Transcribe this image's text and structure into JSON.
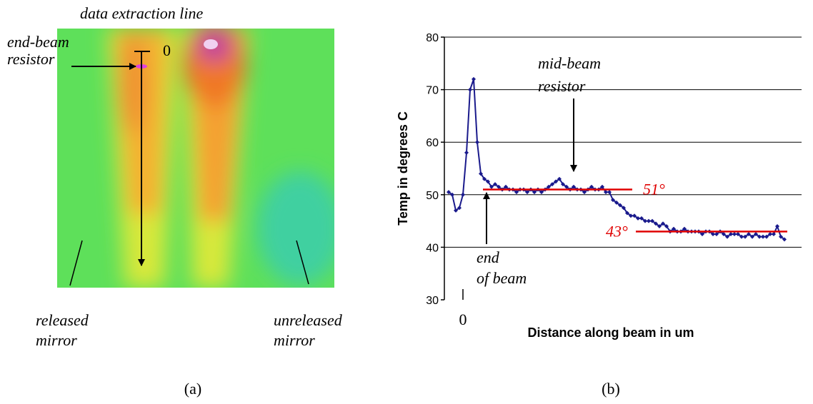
{
  "panel_a": {
    "caption": "(a)",
    "extraction_label": "data extraction line",
    "end_resistor_label": [
      "end-beam",
      "resistor"
    ],
    "zero_label": "0",
    "released_label": [
      "released",
      "mirror"
    ],
    "unreleased_label": [
      "unreleased",
      "mirror"
    ]
  },
  "chart_data": {
    "type": "line",
    "caption": "(b)",
    "x_label": "Distance along beam in um",
    "y_label": "Temp in degrees C",
    "xlim": [
      -26,
      474
    ],
    "xticks": [
      0
    ],
    "ylim": [
      30,
      80
    ],
    "yticks": [
      30,
      40,
      50,
      60,
      70,
      80
    ],
    "grid": true,
    "x": [
      -20,
      -15,
      -10,
      -5,
      0,
      5,
      10,
      15,
      20,
      25,
      30,
      35,
      40,
      45,
      50,
      55,
      60,
      65,
      70,
      75,
      80,
      85,
      90,
      95,
      100,
      105,
      110,
      115,
      120,
      125,
      130,
      135,
      140,
      145,
      150,
      155,
      160,
      165,
      170,
      175,
      180,
      185,
      190,
      195,
      200,
      205,
      210,
      215,
      220,
      225,
      230,
      235,
      240,
      245,
      250,
      255,
      260,
      265,
      270,
      275,
      280,
      285,
      290,
      295,
      300,
      305,
      310,
      315,
      320,
      325,
      330,
      335,
      340,
      345,
      350,
      355,
      360,
      365,
      370,
      375,
      380,
      385,
      390,
      395,
      400,
      405,
      410,
      415,
      420,
      425,
      430,
      435,
      440,
      445,
      450
    ],
    "series": [
      {
        "color": "#1a1a8c",
        "values": [
          50.5,
          50,
          47,
          47.5,
          50,
          58,
          70,
          72,
          60,
          54,
          53,
          52.5,
          51.5,
          52,
          51.5,
          51,
          51.5,
          51,
          51,
          50.5,
          51,
          51,
          50.5,
          51,
          50.5,
          51,
          50.5,
          51,
          51.5,
          52,
          52.5,
          53,
          52,
          51.5,
          51,
          51.5,
          51,
          51,
          50.5,
          51,
          51.5,
          51,
          51,
          51.5,
          50.5,
          50.5,
          49,
          48.5,
          48,
          47.5,
          46.5,
          46,
          46,
          45.5,
          45.5,
          45,
          45,
          45,
          44.5,
          44,
          44.5,
          44,
          43,
          43.5,
          43,
          43,
          43.5,
          43,
          43,
          43,
          43,
          42.5,
          43,
          43,
          42.5,
          42.5,
          43,
          42.5,
          42,
          42.5,
          42.5,
          42.5,
          42,
          42,
          42.5,
          42,
          42.5,
          42,
          42,
          42,
          42.5,
          42.5,
          44,
          42,
          41.5
        ]
      }
    ],
    "reference_lines": [
      {
        "value": 51,
        "label": "51°",
        "x": [
          28,
          237
        ],
        "color": "#e00000"
      },
      {
        "value": 43,
        "label": "43°",
        "x": [
          242,
          454
        ],
        "color": "#e00000"
      }
    ],
    "annotations": [
      {
        "text": [
          "mid-beam",
          "resistor"
        ]
      },
      {
        "text": [
          "end",
          "of beam"
        ]
      }
    ]
  }
}
